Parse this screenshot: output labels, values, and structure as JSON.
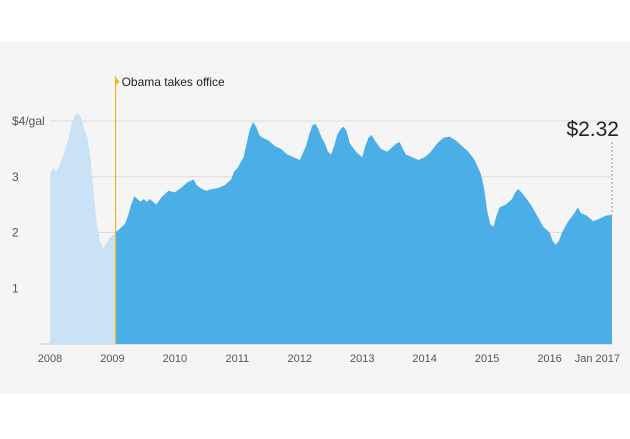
{
  "chart_data": {
    "type": "area",
    "title": "",
    "xlabel": "",
    "ylabel": "",
    "ylim": [
      0,
      4
    ],
    "y_ticks": [
      {
        "value": 1,
        "label": "1"
      },
      {
        "value": 2,
        "label": "2"
      },
      {
        "value": 3,
        "label": "3"
      },
      {
        "value": 4,
        "label": "$4/gal"
      }
    ],
    "x_ticks": [
      {
        "value": 2008,
        "label": "2008"
      },
      {
        "value": 2009,
        "label": "2009"
      },
      {
        "value": 2010,
        "label": "2010"
      },
      {
        "value": 2011,
        "label": "2011"
      },
      {
        "value": 2012,
        "label": "2012"
      },
      {
        "value": 2013,
        "label": "2013"
      },
      {
        "value": 2014,
        "label": "2014"
      },
      {
        "value": 2015,
        "label": "2015"
      },
      {
        "value": 2016,
        "label": "2016"
      },
      {
        "value": 2017,
        "label": "Jan 2017"
      }
    ],
    "xlim": [
      2008,
      2017
    ],
    "grid": true,
    "annotation": {
      "x": 2009.05,
      "label": "Obama takes office"
    },
    "callout": {
      "x": 2017,
      "value": 2.32,
      "label": "$2.32"
    },
    "colors": {
      "before": "#c9e2f6",
      "after": "#4baee7",
      "marker": "#f0b429",
      "grid": "#dddddd"
    },
    "series": [
      {
        "name": "",
        "x": [
          2008.0,
          2008.05,
          2008.1,
          2008.15,
          2008.2,
          2008.25,
          2008.3,
          2008.35,
          2008.4,
          2008.45,
          2008.5,
          2008.55,
          2008.6,
          2008.65,
          2008.7,
          2008.75,
          2008.8,
          2008.85,
          2008.9,
          2008.95,
          2009.0,
          2009.05,
          2009.1,
          2009.15,
          2009.2,
          2009.25,
          2009.3,
          2009.35,
          2009.4,
          2009.45,
          2009.5,
          2009.55,
          2009.6,
          2009.65,
          2009.7,
          2009.8,
          2009.9,
          2010.0,
          2010.1,
          2010.2,
          2010.3,
          2010.35,
          2010.4,
          2010.5,
          2010.6,
          2010.7,
          2010.8,
          2010.9,
          2010.95,
          2011.0,
          2011.1,
          2011.15,
          2011.2,
          2011.25,
          2011.3,
          2011.35,
          2011.4,
          2011.5,
          2011.6,
          2011.7,
          2011.8,
          2011.9,
          2012.0,
          2012.1,
          2012.15,
          2012.2,
          2012.25,
          2012.3,
          2012.35,
          2012.4,
          2012.45,
          2012.5,
          2012.55,
          2012.6,
          2012.65,
          2012.7,
          2012.75,
          2012.8,
          2012.9,
          2013.0,
          2013.05,
          2013.1,
          2013.15,
          2013.2,
          2013.3,
          2013.4,
          2013.5,
          2013.55,
          2013.6,
          2013.65,
          2013.7,
          2013.8,
          2013.9,
          2014.0,
          2014.1,
          2014.2,
          2014.3,
          2014.4,
          2014.5,
          2014.55,
          2014.6,
          2014.7,
          2014.8,
          2014.9,
          2014.95,
          2015.0,
          2015.05,
          2015.1,
          2015.15,
          2015.2,
          2015.3,
          2015.4,
          2015.45,
          2015.5,
          2015.55,
          2015.6,
          2015.7,
          2015.8,
          2015.9,
          2016.0,
          2016.05,
          2016.1,
          2016.15,
          2016.2,
          2016.3,
          2016.4,
          2016.45,
          2016.5,
          2016.6,
          2016.7,
          2016.8,
          2016.9,
          2017.0
        ],
        "values": [
          3.05,
          3.15,
          3.1,
          3.2,
          3.35,
          3.5,
          3.7,
          3.95,
          4.1,
          4.15,
          4.05,
          3.85,
          3.7,
          3.3,
          2.7,
          2.15,
          1.85,
          1.72,
          1.8,
          1.9,
          1.95,
          2.0,
          2.05,
          2.1,
          2.15,
          2.3,
          2.5,
          2.65,
          2.6,
          2.55,
          2.6,
          2.55,
          2.6,
          2.55,
          2.5,
          2.65,
          2.75,
          2.72,
          2.8,
          2.9,
          2.95,
          2.85,
          2.8,
          2.75,
          2.78,
          2.8,
          2.85,
          2.95,
          3.1,
          3.15,
          3.35,
          3.6,
          3.85,
          3.98,
          3.9,
          3.75,
          3.7,
          3.65,
          3.55,
          3.5,
          3.4,
          3.35,
          3.3,
          3.55,
          3.75,
          3.92,
          3.95,
          3.85,
          3.7,
          3.6,
          3.45,
          3.4,
          3.55,
          3.75,
          3.85,
          3.9,
          3.82,
          3.6,
          3.45,
          3.35,
          3.55,
          3.7,
          3.75,
          3.65,
          3.5,
          3.45,
          3.55,
          3.6,
          3.62,
          3.5,
          3.4,
          3.35,
          3.3,
          3.35,
          3.45,
          3.6,
          3.7,
          3.72,
          3.65,
          3.6,
          3.55,
          3.45,
          3.3,
          3.05,
          2.8,
          2.4,
          2.15,
          2.1,
          2.3,
          2.45,
          2.5,
          2.6,
          2.72,
          2.78,
          2.72,
          2.65,
          2.5,
          2.3,
          2.1,
          2.0,
          1.85,
          1.78,
          1.85,
          2.0,
          2.2,
          2.35,
          2.45,
          2.35,
          2.3,
          2.2,
          2.25,
          2.3,
          2.32
        ]
      }
    ]
  }
}
